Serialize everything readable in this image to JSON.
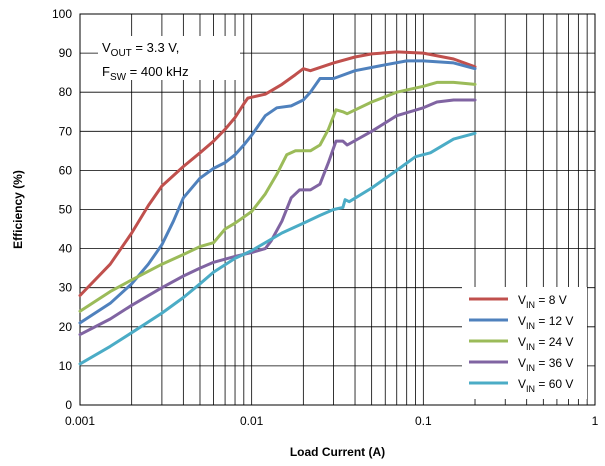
{
  "chart_data": {
    "type": "line",
    "xscale": "log",
    "xlim": [
      0.001,
      1
    ],
    "ylim": [
      0,
      100
    ],
    "xlabel": "Load Current (A)",
    "ylabel": "Efficiency (%)",
    "xticks": [
      "0.001",
      "0.01",
      "0.1",
      "1"
    ],
    "yticks": [
      "0",
      "10",
      "20",
      "30",
      "40",
      "50",
      "60",
      "70",
      "80",
      "90",
      "100"
    ],
    "grid": true,
    "legend_position": "bottom-right",
    "annotation": {
      "line1": {
        "main": "V",
        "sub": "OUT",
        "rest": " = 3.3 V,"
      },
      "line2": {
        "main": "F",
        "sub": "SW",
        "rest": " = 400 kHz"
      }
    },
    "series": [
      {
        "name": "VIN = 8 V",
        "label_main": "V",
        "label_sub": "IN",
        "label_rest": " = 8 V",
        "color": "#c0504d",
        "points": [
          [
            0.001,
            28
          ],
          [
            0.0015,
            36
          ],
          [
            0.002,
            44
          ],
          [
            0.0025,
            51
          ],
          [
            0.003,
            56
          ],
          [
            0.004,
            61
          ],
          [
            0.005,
            64.5
          ],
          [
            0.006,
            67.5
          ],
          [
            0.007,
            70.5
          ],
          [
            0.008,
            73.5
          ],
          [
            0.009,
            77
          ],
          [
            0.0095,
            78.5
          ],
          [
            0.012,
            79.5
          ],
          [
            0.015,
            82
          ],
          [
            0.018,
            84.5
          ],
          [
            0.02,
            86
          ],
          [
            0.022,
            85.5
          ],
          [
            0.03,
            87.5
          ],
          [
            0.04,
            89
          ],
          [
            0.05,
            89.8
          ],
          [
            0.07,
            90.3
          ],
          [
            0.1,
            90
          ],
          [
            0.15,
            88.5
          ],
          [
            0.2,
            86.5
          ]
        ]
      },
      {
        "name": "VIN = 12 V",
        "label_main": "V",
        "label_sub": "IN",
        "label_rest": " = 12 V",
        "color": "#4f81bd",
        "points": [
          [
            0.001,
            21
          ],
          [
            0.0015,
            26
          ],
          [
            0.002,
            31
          ],
          [
            0.0025,
            36
          ],
          [
            0.003,
            41
          ],
          [
            0.0035,
            47
          ],
          [
            0.004,
            53
          ],
          [
            0.005,
            58
          ],
          [
            0.006,
            60.5
          ],
          [
            0.007,
            62
          ],
          [
            0.008,
            64
          ],
          [
            0.009,
            66.5
          ],
          [
            0.01,
            69
          ],
          [
            0.012,
            74
          ],
          [
            0.014,
            76
          ],
          [
            0.017,
            76.5
          ],
          [
            0.02,
            78
          ],
          [
            0.022,
            80
          ],
          [
            0.025,
            83.5
          ],
          [
            0.03,
            83.5
          ],
          [
            0.04,
            85.5
          ],
          [
            0.06,
            87
          ],
          [
            0.08,
            88
          ],
          [
            0.1,
            88
          ],
          [
            0.15,
            87.5
          ],
          [
            0.2,
            86
          ]
        ]
      },
      {
        "name": "VIN = 24 V",
        "label_main": "V",
        "label_sub": "IN",
        "label_rest": " = 24 V",
        "color": "#9bbb59",
        "points": [
          [
            0.001,
            24
          ],
          [
            0.0015,
            29
          ],
          [
            0.002,
            32
          ],
          [
            0.003,
            36
          ],
          [
            0.004,
            38.5
          ],
          [
            0.005,
            40.5
          ],
          [
            0.006,
            41.5
          ],
          [
            0.007,
            45
          ],
          [
            0.008,
            46.5
          ],
          [
            0.01,
            49.5
          ],
          [
            0.012,
            54
          ],
          [
            0.014,
            59
          ],
          [
            0.016,
            64
          ],
          [
            0.018,
            65
          ],
          [
            0.022,
            65
          ],
          [
            0.025,
            66.5
          ],
          [
            0.028,
            70.5
          ],
          [
            0.031,
            75.5
          ],
          [
            0.034,
            75
          ],
          [
            0.036,
            74.5
          ],
          [
            0.05,
            77.5
          ],
          [
            0.07,
            80
          ],
          [
            0.1,
            81.5
          ],
          [
            0.12,
            82.5
          ],
          [
            0.15,
            82.5
          ],
          [
            0.2,
            82
          ]
        ]
      },
      {
        "name": "VIN = 36 V",
        "label_main": "V",
        "label_sub": "IN",
        "label_rest": " = 36 V",
        "color": "#8064a2",
        "points": [
          [
            0.001,
            18
          ],
          [
            0.0015,
            22
          ],
          [
            0.002,
            25.5
          ],
          [
            0.003,
            30
          ],
          [
            0.004,
            33
          ],
          [
            0.005,
            35
          ],
          [
            0.006,
            36.5
          ],
          [
            0.008,
            38
          ],
          [
            0.01,
            39
          ],
          [
            0.012,
            40
          ],
          [
            0.013,
            42
          ],
          [
            0.015,
            47
          ],
          [
            0.017,
            53
          ],
          [
            0.019,
            55
          ],
          [
            0.022,
            55
          ],
          [
            0.025,
            56.5
          ],
          [
            0.028,
            62
          ],
          [
            0.031,
            67.5
          ],
          [
            0.034,
            67.5
          ],
          [
            0.036,
            66.5
          ],
          [
            0.05,
            70
          ],
          [
            0.07,
            74
          ],
          [
            0.1,
            76
          ],
          [
            0.12,
            77.5
          ],
          [
            0.15,
            78
          ],
          [
            0.2,
            78
          ]
        ]
      },
      {
        "name": "VIN = 60 V",
        "label_main": "V",
        "label_sub": "IN",
        "label_rest": " = 60 V",
        "color": "#4bacc6",
        "points": [
          [
            0.001,
            10.5
          ],
          [
            0.0015,
            15
          ],
          [
            0.002,
            18.5
          ],
          [
            0.003,
            23.5
          ],
          [
            0.004,
            27.5
          ],
          [
            0.005,
            31
          ],
          [
            0.006,
            34
          ],
          [
            0.008,
            37.5
          ],
          [
            0.01,
            39.5
          ],
          [
            0.015,
            44
          ],
          [
            0.02,
            46.5
          ],
          [
            0.025,
            48.5
          ],
          [
            0.03,
            50
          ],
          [
            0.034,
            50.5
          ],
          [
            0.035,
            52.5
          ],
          [
            0.037,
            52
          ],
          [
            0.05,
            55.5
          ],
          [
            0.07,
            60
          ],
          [
            0.09,
            63.5
          ],
          [
            0.11,
            64.5
          ],
          [
            0.15,
            68
          ],
          [
            0.2,
            69.5
          ]
        ]
      }
    ]
  }
}
